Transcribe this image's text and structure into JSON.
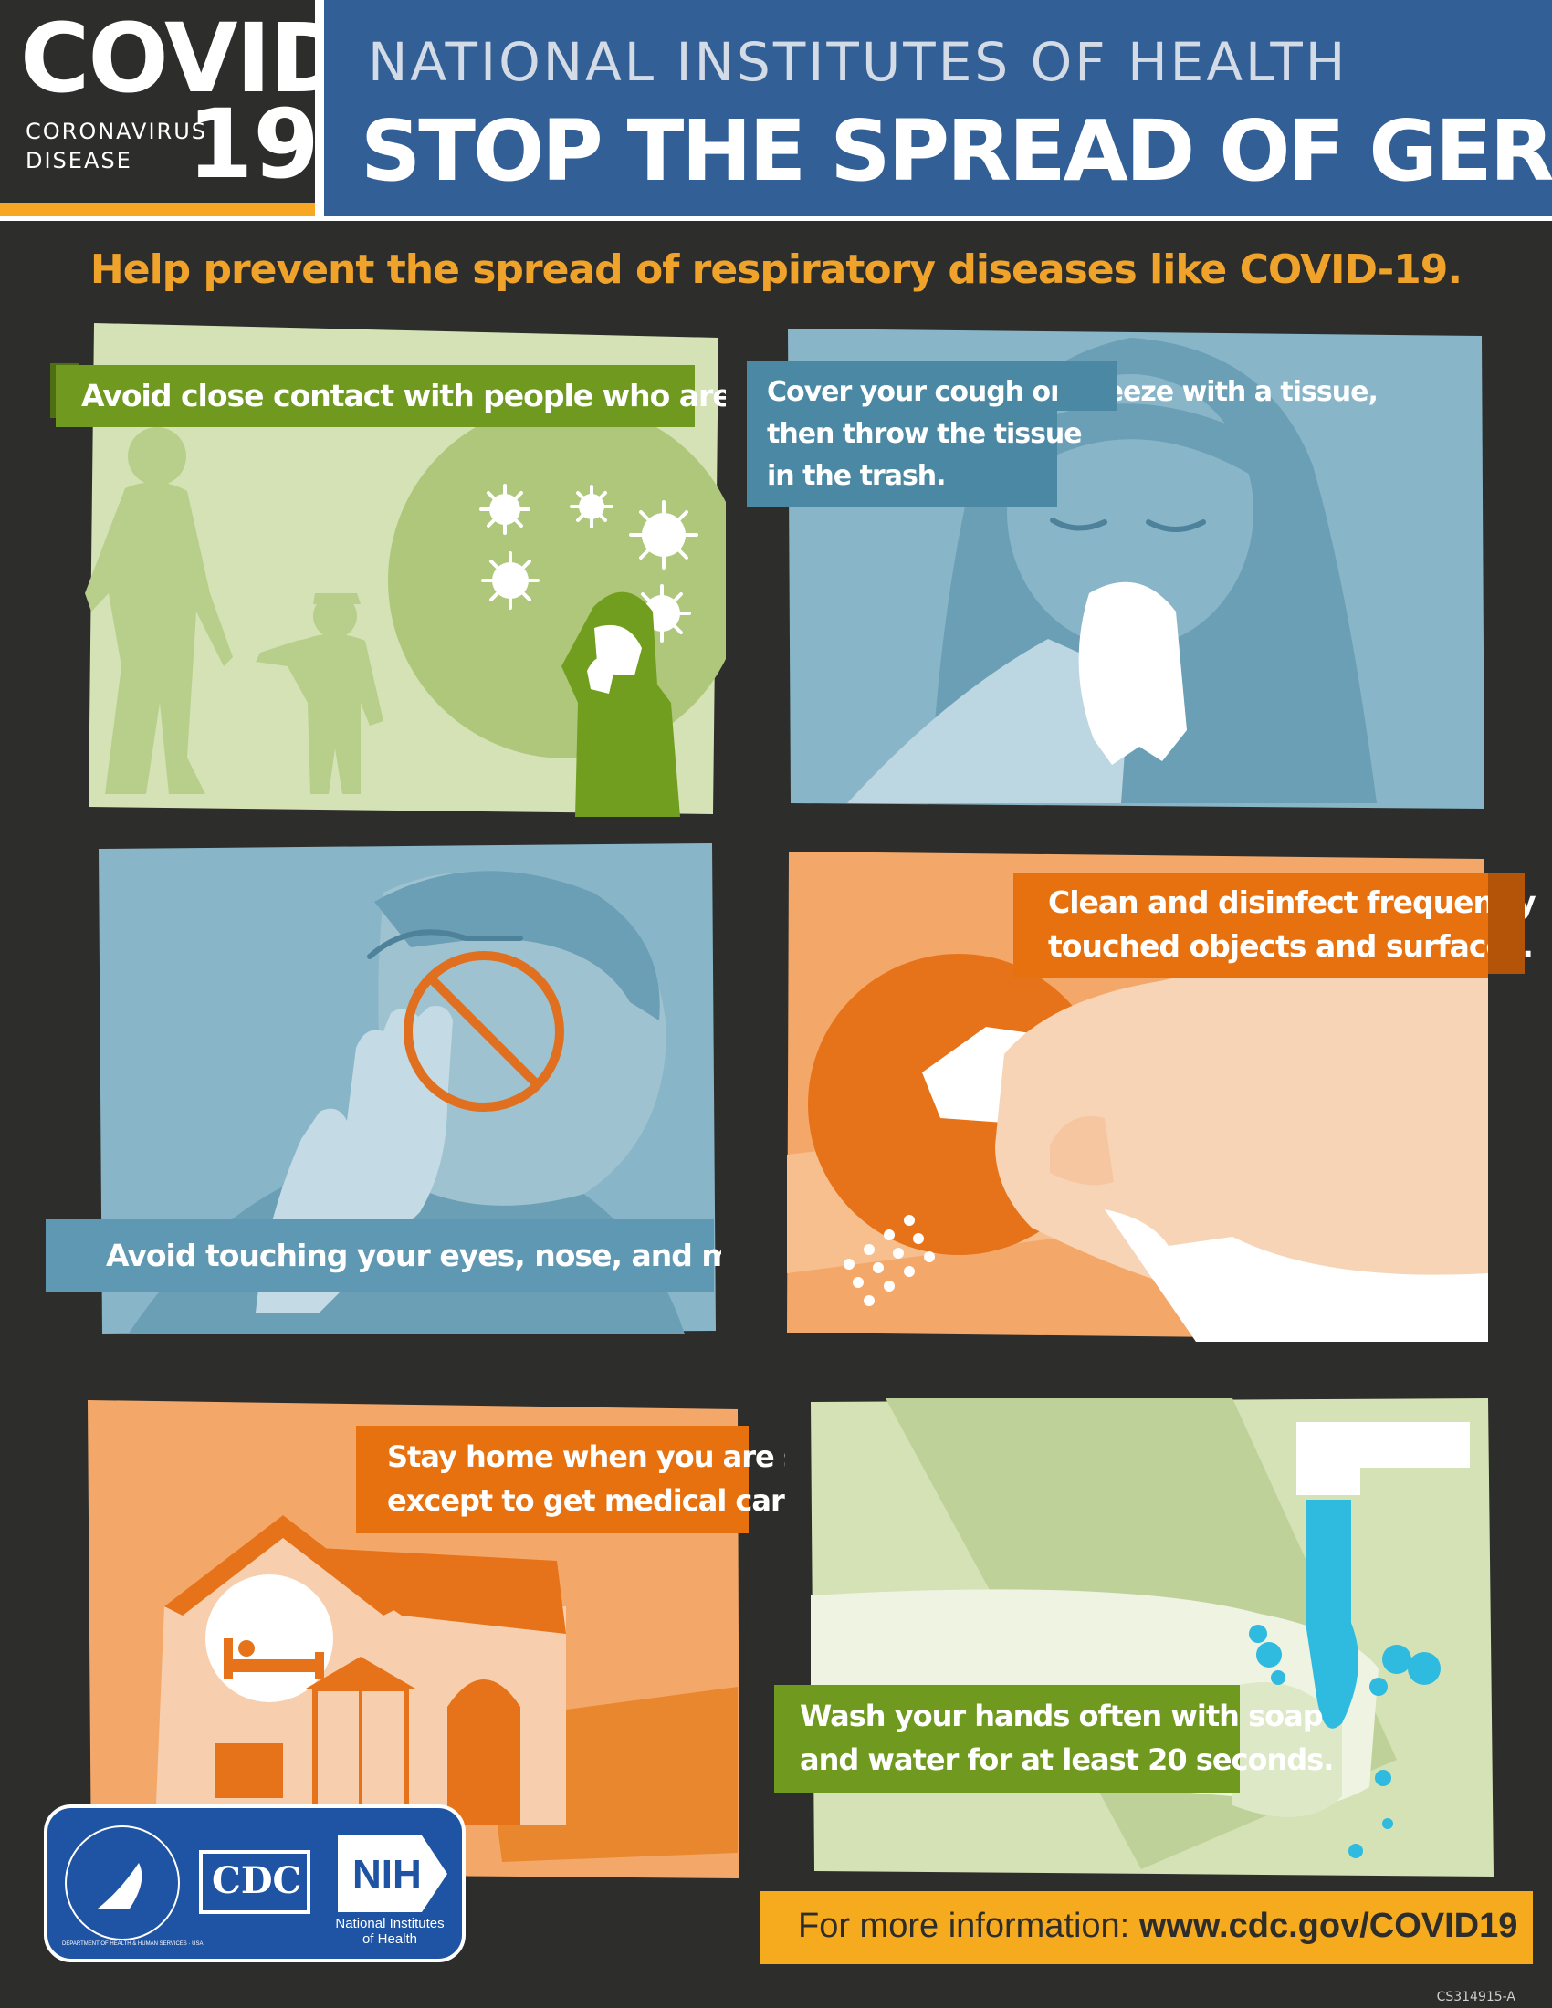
{
  "header": {
    "covid_word": "COVID",
    "covid_sub_line1": "CORONAVIRUS",
    "covid_sub_line2": "DISEASE",
    "covid_number": "19",
    "org_title": "NATIONAL INSTITUTES OF HEALTH",
    "main_title": "STOP THE SPREAD OF GERMS"
  },
  "subtitle": "Help prevent the spread of respiratory diseases like COVID-19.",
  "panels": [
    {
      "id": "avoid-contact",
      "text": "Avoid close contact with people who are sick.",
      "icon": "people-virus-illustration"
    },
    {
      "id": "cover-cough",
      "lines": [
        "Cover your cough or sneeze with a tissue,",
        "then throw the tissue",
        "in the trash."
      ],
      "icon": "tissue-sneeze-illustration"
    },
    {
      "id": "avoid-touching",
      "text": "Avoid touching your eyes, nose, and mouth.",
      "icon": "no-face-touch-illustration"
    },
    {
      "id": "clean-disinfect",
      "lines": [
        "Clean and disinfect frequently",
        "touched objects and surfaces."
      ],
      "icon": "spray-bottle-illustration"
    },
    {
      "id": "stay-home",
      "lines": [
        "Stay home when you are sick,",
        "except to get medical care."
      ],
      "icon": "house-bed-illustration"
    },
    {
      "id": "wash-hands",
      "lines": [
        "Wash your hands often with soap",
        "and water for at least 20 seconds."
      ],
      "icon": "hand-washing-illustration"
    }
  ],
  "footer": {
    "info_prefix": "For more information: ",
    "info_url": "www.cdc.gov/COVID19",
    "logos": {
      "hhs_seal": "DEPARTMENT OF HEALTH & HUMAN SERVICES · USA",
      "cdc": "CDC",
      "nih": "NIH",
      "nih_line1": "National Institutes",
      "nih_line2": "of Health"
    },
    "doc_code": "CS314915-A"
  },
  "colors": {
    "background": "#2d2d2b",
    "header_blue": "#325f95",
    "accent_orange": "#f0a32a",
    "green_label": "#6f9a1f",
    "blue_label": "#4a88a3",
    "orange_label": "#e7700f",
    "footer_yellow": "#f6ab1f"
  }
}
